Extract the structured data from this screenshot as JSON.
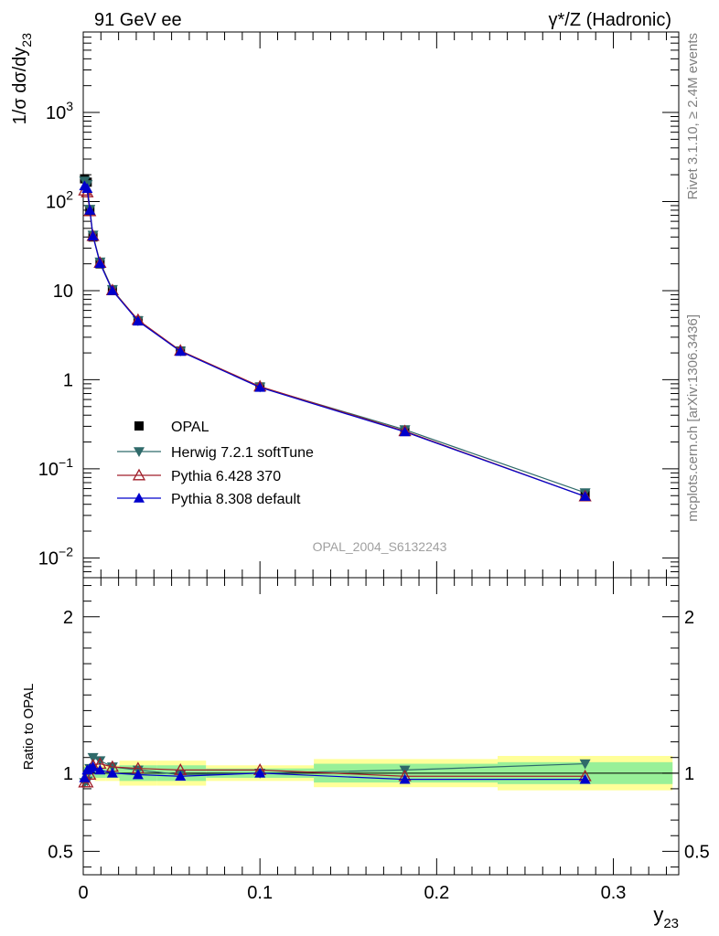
{
  "header": {
    "left_title": "91 GeV ee",
    "right_title": "γ*/Z (Hadronic)"
  },
  "side_labels": {
    "rivet": "Rivet 3.1.10, ≥ 2.4M events",
    "mcplots": "mcplots.cern.ch [arXiv:1306.3436]"
  },
  "watermark": "OPAL_2004_S6132243",
  "colors": {
    "opal": "#000000",
    "herwig": "#2f6a6a",
    "pythia6": "#a01f2a",
    "pythia8": "#0000cc",
    "band_inner": "#98f098",
    "band_outer": "#ffff99"
  },
  "chart_data": [
    {
      "type": "line",
      "panel": "main",
      "ylabel": "1/σ dσ/dy",
      "ylabel_sub": "23",
      "yscale": "log",
      "xlim": [
        0,
        0.337
      ],
      "ylim": [
        0.006,
        8000
      ],
      "y_tick_labels": [
        "10-2",
        "10-1",
        "1",
        "10",
        "102",
        "103"
      ],
      "legend_position": "bottom-left",
      "x": [
        0.00075,
        0.00225,
        0.00375,
        0.0055,
        0.0095,
        0.0165,
        0.031,
        0.055,
        0.1,
        0.182,
        0.284
      ],
      "series": [
        {
          "name": "OPAL",
          "marker": "square",
          "values": [
            180,
            165,
            80,
            40,
            20,
            10,
            4.6,
            2.1,
            0.83,
            0.27,
            0.052
          ]
        },
        {
          "name": "Herwig 7.2.1 softTune",
          "marker": "triangle-down",
          "values": [
            170,
            155,
            82,
            42,
            21,
            10.3,
            4.6,
            2.1,
            0.83,
            0.275,
            0.054
          ]
        },
        {
          "name": "Pythia 6.428 370",
          "marker": "triangle-up-open",
          "values": [
            133,
            127,
            78,
            41,
            20.5,
            10.1,
            4.7,
            2.12,
            0.84,
            0.265,
            0.049
          ]
        },
        {
          "name": "Pythia 8.308 default",
          "marker": "triangle-up",
          "values": [
            150,
            140,
            80,
            41,
            20.2,
            10,
            4.55,
            2.08,
            0.82,
            0.26,
            0.049
          ]
        }
      ]
    },
    {
      "type": "line",
      "panel": "ratio",
      "ylabel": "Ratio to OPAL",
      "xlabel": "y",
      "xlabel_sub": "23",
      "xlim": [
        0,
        0.337
      ],
      "ylim": [
        0.35,
        2.25
      ],
      "y_ticks": [
        0.5,
        1,
        2
      ],
      "y_tick_labels": [
        "0.5",
        "1",
        "2"
      ],
      "x_ticks": [
        0,
        0.1,
        0.2,
        0.3
      ],
      "x_tick_labels": [
        "0",
        "0.1",
        "0.2",
        "0.3"
      ],
      "x": [
        0.00075,
        0.00225,
        0.00375,
        0.0055,
        0.0095,
        0.0165,
        0.031,
        0.055,
        0.1,
        0.182,
        0.284
      ],
      "bands": {
        "x_edges": [
          0,
          0.0015,
          0.003,
          0.0045,
          0.0065,
          0.0125,
          0.0205,
          0.0415,
          0.0695,
          0.1305,
          0.2345,
          0.3335
        ],
        "inner": [
          0.04,
          0.03,
          0.03,
          0.03,
          0.03,
          0.03,
          0.05,
          0.05,
          0.03,
          0.06,
          0.07
        ],
        "outer": [
          0.05,
          0.04,
          0.04,
          0.04,
          0.05,
          0.05,
          0.08,
          0.08,
          0.05,
          0.09,
          0.11
        ]
      },
      "series": [
        {
          "name": "Herwig 7.2.1 softTune",
          "marker": "triangle-down",
          "values": [
            0.94,
            0.95,
            1.03,
            1.1,
            1.08,
            1.04,
            1.02,
            0.99,
            1.0,
            1.02,
            1.06
          ]
        },
        {
          "name": "Pythia 6.428 370",
          "marker": "triangle-up-open",
          "values": [
            0.94,
            0.94,
            0.99,
            1.05,
            1.06,
            1.04,
            1.03,
            1.02,
            1.02,
            0.98,
            0.98
          ]
        },
        {
          "name": "Pythia 8.308 default",
          "marker": "triangle-up",
          "values": [
            0.97,
            1.02,
            1.03,
            1.04,
            1.02,
            1.0,
            0.99,
            0.98,
            1.0,
            0.96,
            0.96
          ]
        }
      ]
    }
  ]
}
